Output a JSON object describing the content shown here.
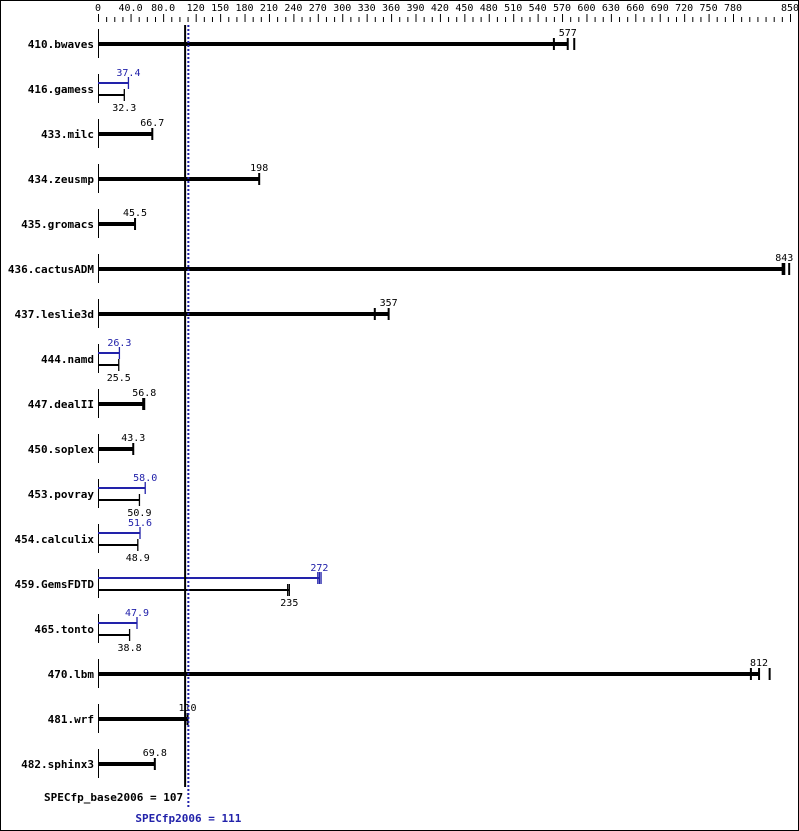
{
  "chart_data": {
    "type": "bar",
    "orientation": "horizontal",
    "xlim": [
      0,
      850
    ],
    "x_tick_labels": [
      "0",
      "40.0",
      "80.0",
      "120",
      "150",
      "180",
      "210",
      "240",
      "270",
      "300",
      "330",
      "360",
      "390",
      "420",
      "450",
      "480",
      "510",
      "540",
      "570",
      "600",
      "630",
      "660",
      "690",
      "720",
      "750",
      "780",
      "850"
    ],
    "x_tick_values": [
      0,
      40,
      80,
      120,
      150,
      180,
      210,
      240,
      270,
      300,
      330,
      360,
      390,
      420,
      450,
      480,
      510,
      540,
      570,
      600,
      630,
      660,
      690,
      720,
      750,
      780,
      850
    ],
    "categories": [
      "410.bwaves",
      "416.gamess",
      "433.milc",
      "434.zeusmp",
      "435.gromacs",
      "436.cactusADM",
      "437.leslie3d",
      "444.namd",
      "447.dealII",
      "450.soplex",
      "453.povray",
      "454.calculix",
      "459.GemsFDTD",
      "465.tonto",
      "470.lbm",
      "481.wrf",
      "482.sphinx3"
    ],
    "series": [
      {
        "name": "SPECfp_base2006",
        "color": "#000000",
        "values": [
          577,
          32.3,
          66.7,
          198,
          45.5,
          843,
          357,
          25.5,
          56.8,
          43.3,
          50.9,
          48.9,
          235,
          38.8,
          812,
          110,
          69.8
        ],
        "labels": [
          "577",
          "32.3",
          "66.7",
          "198",
          "45.5",
          "843",
          "357",
          "25.5",
          "56.8",
          "43.3",
          "50.9",
          "48.9",
          "235",
          "38.8",
          "812",
          "110",
          "69.8"
        ],
        "runs": [
          [
            560,
            577,
            585
          ],
          null,
          null,
          null,
          null,
          [
            841,
            843,
            849
          ],
          [
            340,
            357
          ],
          null,
          [
            55.5,
            56.8
          ],
          null,
          null,
          null,
          [
            233,
            235
          ],
          null,
          [
            802,
            812,
            825
          ],
          null,
          null
        ]
      },
      {
        "name": "SPECfp2006",
        "color": "#2222aa",
        "values": [
          null,
          37.4,
          null,
          null,
          null,
          null,
          null,
          26.3,
          null,
          null,
          58.0,
          51.6,
          272,
          47.9,
          null,
          null,
          null
        ],
        "labels": [
          null,
          "37.4",
          null,
          null,
          null,
          null,
          null,
          "26.3",
          null,
          null,
          "58.0",
          "51.6",
          "272",
          "47.9",
          null,
          null,
          null
        ],
        "runs": [
          null,
          null,
          null,
          null,
          null,
          null,
          null,
          null,
          null,
          null,
          null,
          null,
          [
            270,
            272,
            274
          ],
          null,
          null,
          null,
          null
        ]
      }
    ],
    "reference_lines": [
      {
        "label": "SPECfp_base2006 = 107",
        "value": 107,
        "color": "#000000",
        "style": "solid"
      },
      {
        "label": "SPECfp2006 = 111",
        "value": 111,
        "color": "#2222aa",
        "style": "dotted"
      }
    ]
  }
}
